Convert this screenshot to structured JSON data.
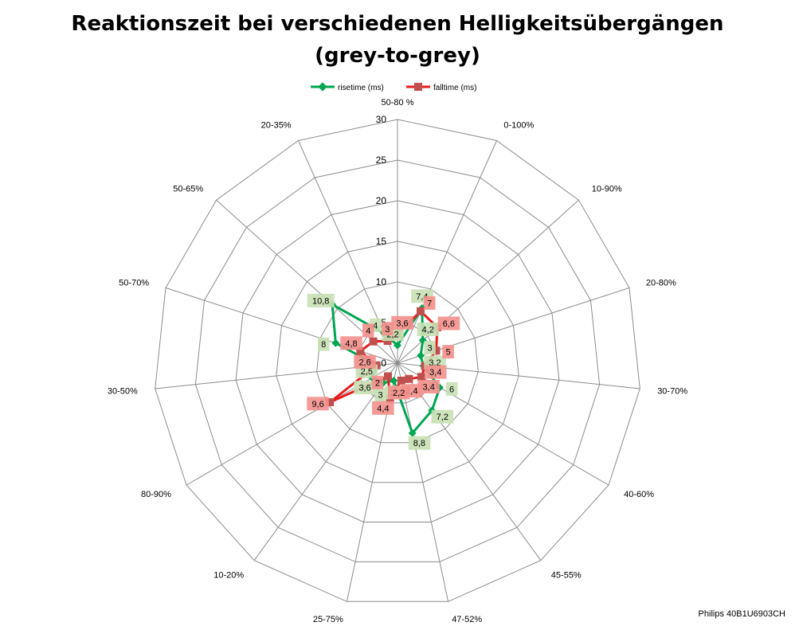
{
  "chart_data": {
    "type": "radar",
    "title": "Reaktionszeit bei verschiedenen Helligkeitsübergängen",
    "subtitle": "(grey-to-grey)",
    "categories": [
      "50-80 %",
      "0-100%",
      "10-90%",
      "20-80%",
      "30-70%",
      "40-60%",
      "45-55%",
      "47-52%",
      "25-75%",
      "10-20%",
      "80-90%",
      "30-50%",
      "50-70%",
      "50-65%",
      "20-35%"
    ],
    "rlim": [
      0,
      30
    ],
    "ticks": [
      "0",
      "5",
      "10",
      "15",
      "20",
      "25",
      "30"
    ],
    "grid": true,
    "legend_position": "top",
    "series": [
      {
        "name": "risetime (ms)",
        "color": "#00a651",
        "label_bg": "#c6e0b4",
        "values": [
          2.2,
          7.4,
          4.2,
          3,
          3.2,
          6,
          7.2,
          8.8,
          2.2,
          3,
          3.6,
          2.5,
          8,
          10.8,
          4
        ],
        "labels": [
          "2,2",
          "7,4",
          "4,2",
          "3",
          "3,2",
          "6",
          "7,2",
          "8,8",
          "2,2",
          "3",
          "3,6",
          "2,5",
          "8",
          "10,8",
          "4"
        ]
      },
      {
        "name": "falltime (ms)",
        "color": "#e81c1c",
        "label_bg": "#f4908c",
        "values": [
          3.6,
          7,
          6.6,
          5,
          3.4,
          3.4,
          2.4,
          2.2,
          4.4,
          2,
          9.6,
          2.6,
          4.8,
          4,
          3
        ],
        "labels": [
          "3,6",
          "7",
          "6,6",
          "5",
          "3,4",
          "3,4",
          "2,4",
          "2,2",
          "4,4",
          "2",
          "9,6",
          "2,6",
          "4,8",
          "4",
          "3"
        ]
      }
    ]
  },
  "footer": {
    "credit": "Philips 40B1U6903CH"
  }
}
